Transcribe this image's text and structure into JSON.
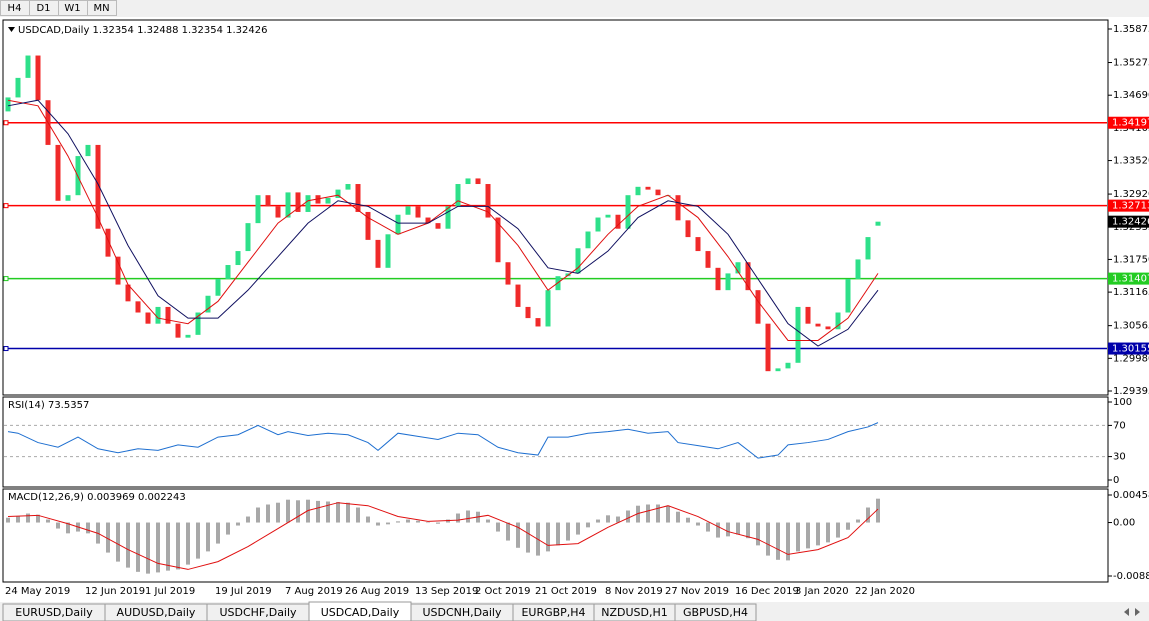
{
  "timeframes": [
    "H4",
    "D1",
    "W1",
    "MN"
  ],
  "symbol_tabs": [
    "EURUSD,Daily",
    "AUDUSD,Daily",
    "USDCHF,Daily",
    "USDCAD,Daily",
    "USDCNH,Daily",
    "EURGBP,H4",
    "NZDUSD,H1",
    "GBPUSD,H4"
  ],
  "chart_data": [
    {
      "type": "candlestick",
      "title": "USDCAD,Daily 1.32354 1.32488 1.32354 1.32426",
      "categories": [
        "24 May 2019",
        null,
        null,
        null,
        null,
        null,
        null,
        null,
        "12 Jun 2019",
        null,
        null,
        null,
        null,
        null,
        "1 Jul 2019",
        null,
        null,
        null,
        null,
        null,
        null,
        "19 Jul 2019",
        null,
        null,
        null,
        null,
        null,
        null,
        "7 Aug 2019",
        null,
        null,
        null,
        null,
        null,
        "26 Aug 2019",
        null,
        null,
        null,
        null,
        null,
        null,
        "13 Sep 2019",
        null,
        null,
        null,
        null,
        null,
        "2 Oct 2019",
        null,
        null,
        null,
        null,
        null,
        "21 Oct 2019",
        null,
        null,
        null,
        null,
        null,
        null,
        "8 Nov 2019",
        null,
        null,
        null,
        null,
        null,
        "27 Nov 2019",
        null,
        null,
        null,
        null,
        null,
        null,
        "16 Dec 2019",
        null,
        null,
        null,
        null,
        null,
        "3 Jan 2020",
        null,
        null,
        null,
        null,
        null,
        "22 Jan 2020",
        null,
        null
      ],
      "open": [
        1.344,
        1.3465,
        1.35,
        1.354,
        1.346,
        1.338,
        1.328,
        1.329,
        1.336,
        1.338,
        1.323,
        1.318,
        1.313,
        1.31,
        1.308,
        1.306,
        1.309,
        1.306,
        1.3035,
        1.304,
        1.308,
        1.311,
        1.314,
        1.3165,
        1.319,
        1.324,
        1.329,
        1.327,
        1.325,
        1.3295,
        1.326,
        1.329,
        1.3275,
        1.3285,
        1.33,
        1.331,
        1.326,
        1.321,
        1.316,
        1.322,
        1.3255,
        1.327,
        1.325,
        1.324,
        1.323,
        1.327,
        1.331,
        1.332,
        1.331,
        1.325,
        1.317,
        1.313,
        1.309,
        1.307,
        1.3055,
        1.312,
        1.3145,
        1.315,
        1.3195,
        1.3225,
        1.325,
        1.3255,
        1.323,
        1.329,
        1.3305,
        1.33,
        1.329,
        1.329,
        1.3245,
        1.3215,
        1.319,
        1.316,
        1.312,
        1.315,
        1.317,
        1.312,
        1.306,
        1.2975,
        1.298,
        1.299,
        1.309,
        1.306,
        1.3055,
        1.305,
        1.308,
        1.314,
        1.3175,
        1.32354
      ],
      "close": [
        1.3465,
        1.35,
        1.354,
        1.346,
        1.338,
        1.328,
        1.329,
        1.336,
        1.338,
        1.323,
        1.318,
        1.313,
        1.31,
        1.308,
        1.306,
        1.309,
        1.306,
        1.3035,
        1.304,
        1.308,
        1.311,
        1.314,
        1.3165,
        1.319,
        1.324,
        1.329,
        1.327,
        1.325,
        1.3295,
        1.326,
        1.329,
        1.3275,
        1.3285,
        1.33,
        1.331,
        1.326,
        1.321,
        1.316,
        1.322,
        1.3255,
        1.327,
        1.325,
        1.324,
        1.323,
        1.327,
        1.331,
        1.332,
        1.331,
        1.325,
        1.317,
        1.313,
        1.309,
        1.307,
        1.3055,
        1.312,
        1.3145,
        1.315,
        1.3195,
        1.3225,
        1.325,
        1.3255,
        1.323,
        1.329,
        1.3305,
        1.33,
        1.329,
        1.329,
        1.3245,
        1.3215,
        1.319,
        1.316,
        1.312,
        1.315,
        1.317,
        1.312,
        1.306,
        1.2975,
        1.298,
        1.299,
        1.309,
        1.306,
        1.3055,
        1.305,
        1.308,
        1.314,
        1.3175,
        1.3215,
        1.32426
      ],
      "up_color": "#2ee08a",
      "down_color": "#f02a2a",
      "series": [
        {
          "color": "#e01010",
          "x": [
            0,
            3,
            6,
            9,
            12,
            15,
            18,
            21,
            24,
            27,
            30,
            33,
            36,
            39,
            42,
            45,
            48,
            51,
            54,
            57,
            60,
            63,
            66,
            69,
            72,
            75,
            78,
            81,
            84,
            87
          ],
          "values": [
            1.346,
            1.345,
            1.336,
            1.325,
            1.313,
            1.307,
            1.306,
            1.31,
            1.317,
            1.324,
            1.328,
            1.329,
            1.325,
            1.322,
            1.324,
            1.328,
            1.326,
            1.32,
            1.312,
            1.316,
            1.322,
            1.327,
            1.329,
            1.325,
            1.318,
            1.31,
            1.303,
            1.303,
            1.307,
            1.315
          ]
        },
        {
          "color": "#101060",
          "x": [
            0,
            3,
            6,
            9,
            12,
            15,
            18,
            21,
            24,
            27,
            30,
            33,
            36,
            39,
            42,
            45,
            48,
            51,
            54,
            57,
            60,
            63,
            66,
            69,
            72,
            75,
            78,
            81,
            84,
            87
          ],
          "values": [
            1.345,
            1.346,
            1.34,
            1.331,
            1.32,
            1.311,
            1.307,
            1.307,
            1.312,
            1.318,
            1.324,
            1.328,
            1.327,
            1.324,
            1.324,
            1.327,
            1.327,
            1.323,
            1.316,
            1.315,
            1.319,
            1.325,
            1.328,
            1.327,
            1.322,
            1.314,
            1.306,
            1.302,
            1.305,
            1.312
          ]
        }
      ],
      "levels": [
        {
          "value": 1.34197,
          "color": "#ff0000"
        },
        {
          "value": 1.32713,
          "color": "#ff0000"
        },
        {
          "value": 1.31407,
          "color": "#22cc22"
        },
        {
          "value": 1.30155,
          "color": "#0000aa"
        }
      ],
      "last_price": 1.32426,
      "ylim": [
        1.29395,
        1.35875
      ],
      "yticks": [
        1.35875,
        1.35275,
        {
          "value": 1.3469,
          "label": "1.34690"
        },
        1.34105,
        {
          "value": 1.3352,
          "label": "1.33520"
        },
        {
          "value": 1.3292,
          "label": "1.32920"
        },
        1.32335,
        {
          "value": 1.3175,
          "label": "1.31750"
        },
        1.31165,
        1.30565,
        {
          "value": 1.2998,
          "label": "1.29980"
        },
        1.29395
      ]
    },
    {
      "type": "line",
      "title": "RSI(14) 73.5357",
      "series": [
        {
          "color": "#1e6fd0",
          "x": [
            0,
            1,
            3,
            5,
            7,
            9,
            11,
            13,
            15,
            17,
            19,
            21,
            23,
            25,
            27,
            28,
            30,
            32,
            34,
            36,
            37,
            39,
            41,
            43,
            45,
            47,
            49,
            51,
            53,
            54,
            56,
            58,
            60,
            62,
            64,
            66,
            67,
            69,
            71,
            73,
            75,
            77,
            78,
            80,
            82,
            84,
            86,
            87
          ],
          "values": [
            62,
            60,
            48,
            42,
            55,
            40,
            35,
            40,
            38,
            45,
            42,
            55,
            58,
            70,
            58,
            62,
            57,
            60,
            58,
            48,
            38,
            60,
            56,
            52,
            60,
            58,
            42,
            35,
            32,
            55,
            55,
            60,
            62,
            65,
            60,
            62,
            48,
            44,
            40,
            48,
            28,
            32,
            45,
            48,
            52,
            62,
            68,
            73.5357
          ]
        }
      ],
      "ylim": [
        0,
        100
      ],
      "yticks": [
        100,
        70,
        30,
        0
      ],
      "grid_levels": [
        70,
        30
      ]
    },
    {
      "type": "histogram",
      "title": "MACD(12,26,9) 0.003969 0.002243",
      "values": [
        0.0008,
        0.001,
        0.0015,
        0.0013,
        0.0005,
        -0.001,
        -0.0018,
        -0.0015,
        -0.0018,
        -0.0035,
        -0.005,
        -0.0065,
        -0.0075,
        -0.0082,
        -0.0085,
        -0.0083,
        -0.008,
        -0.0078,
        -0.007,
        -0.006,
        -0.0048,
        -0.0035,
        -0.002,
        -0.0005,
        0.001,
        0.0025,
        0.003,
        0.0033,
        0.0038,
        0.0037,
        0.0038,
        0.0036,
        0.0035,
        0.0034,
        0.0033,
        0.0025,
        0.001,
        -0.0005,
        -0.0003,
        0.0002,
        0.0005,
        0.0003,
        0,
        -0.0002,
        0.0005,
        0.0015,
        0.002,
        0.0018,
        0.0005,
        -0.0015,
        -0.003,
        -0.0042,
        -0.005,
        -0.0055,
        -0.0048,
        -0.0038,
        -0.003,
        -0.002,
        -0.0008,
        0.0005,
        0.0012,
        0.001,
        0.002,
        0.0028,
        0.003,
        0.003,
        0.0028,
        0.0018,
        0.0008,
        -0.0005,
        -0.0015,
        -0.0025,
        -0.0023,
        -0.002,
        -0.0026,
        -0.0038,
        -0.0055,
        -0.0062,
        -0.0063,
        -0.0048,
        -0.0043,
        -0.0038,
        -0.0033,
        -0.0025,
        -0.0012,
        0.0005,
        0.0025,
        0.003969
      ],
      "color": "#a8a8a8",
      "series": [
        {
          "color": "#e01010",
          "x": [
            0,
            3,
            6,
            9,
            12,
            15,
            18,
            21,
            24,
            27,
            30,
            33,
            36,
            39,
            42,
            45,
            48,
            51,
            54,
            57,
            60,
            63,
            66,
            69,
            72,
            75,
            78,
            81,
            84,
            87
          ],
          "values": [
            0.001,
            0.0012,
            -0.0002,
            -0.0018,
            -0.0045,
            -0.0068,
            -0.0078,
            -0.0065,
            -0.004,
            -0.001,
            0.002,
            0.0033,
            0.0028,
            0.001,
            0.0002,
            0.0004,
            0.0012,
            -0.0008,
            -0.0038,
            -0.0035,
            -0.0008,
            0.0015,
            0.0028,
            0.001,
            -0.0015,
            -0.0028,
            -0.0053,
            -0.0045,
            -0.0025,
            0.002243
          ]
        }
      ],
      "ylim": [
        -0.008894,
        0.004581
      ],
      "yticks": [
        0.004581,
        {
          "value": 0,
          "label": "0.00"
        },
        {
          "value": -0.008894,
          "label": "-0.00889"
        }
      ]
    }
  ]
}
